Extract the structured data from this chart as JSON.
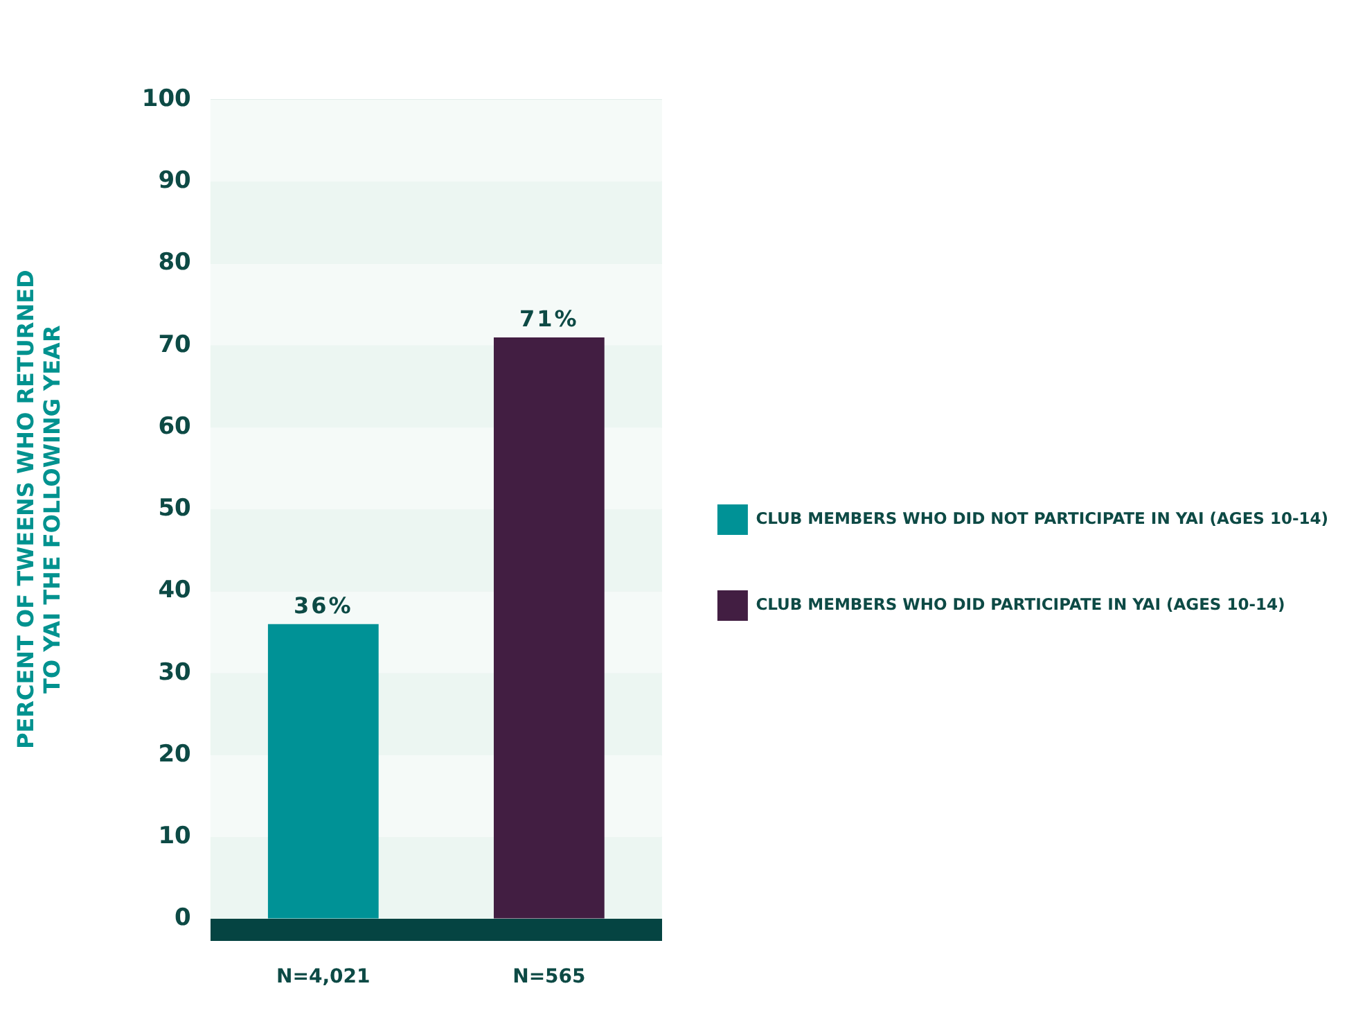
{
  "chart_data": {
    "type": "bar",
    "ylabel": "PERCENT OF TWEENS WHO RETURNED TO YAI THE FOLLOWING YEAR",
    "categories": [
      "N=4,021",
      "N=565"
    ],
    "series": [
      {
        "name": "CLUB MEMBERS WHO DID NOT PARTICIPATE IN YAI (AGES 10-14)",
        "color": "#009296",
        "values": [
          36,
          null
        ],
        "value_labels": [
          "36%",
          null
        ]
      },
      {
        "name": "CLUB MEMBERS WHO DID PARTICIPATE IN YAI (AGES 10-14)",
        "color": "#421e42",
        "values": [
          null,
          71
        ],
        "value_labels": [
          null,
          "71%"
        ]
      }
    ],
    "ylim": [
      0,
      100
    ],
    "yticks": [
      0,
      10,
      20,
      30,
      40,
      50,
      60,
      70,
      80,
      90,
      100
    ],
    "grid": "y",
    "legend": "right"
  }
}
